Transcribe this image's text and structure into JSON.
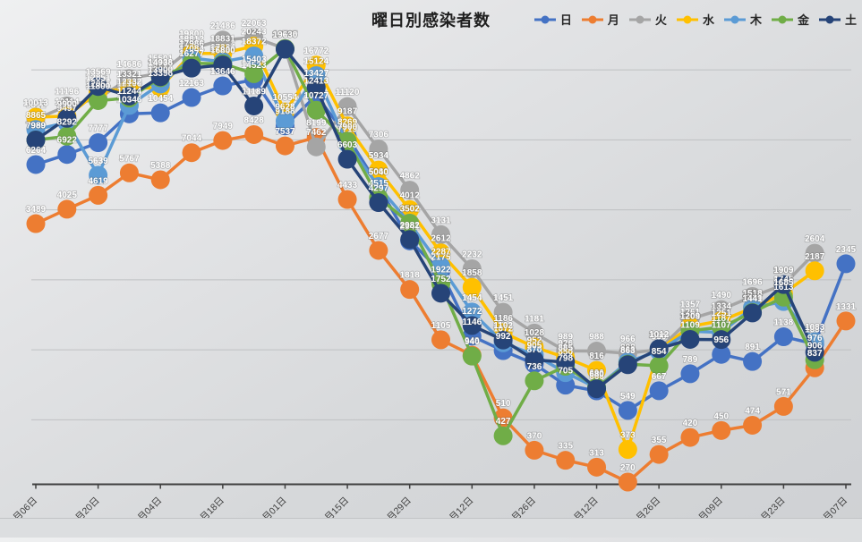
{
  "title": "曜日別感染者数",
  "legend": {
    "items": [
      {
        "label": "日",
        "color": "#4472C4"
      },
      {
        "label": "月",
        "color": "#ED7D31"
      },
      {
        "label": "火",
        "color": "#A5A5A5"
      },
      {
        "label": "水",
        "color": "#FFC000"
      },
      {
        "label": "木",
        "color": "#5B9BD5"
      },
      {
        "label": "金",
        "color": "#70AD47"
      },
      {
        "label": "土",
        "color": "#264478"
      }
    ]
  },
  "chart_data": {
    "type": "line",
    "y_scale": "log",
    "grid_on": true,
    "legend_position": "top-right",
    "y_axis_labels_visible": false,
    "y_gridline_values": [
      500,
      1000,
      2000,
      4000,
      8000,
      16000
    ],
    "x_tick_labels": [
      "11月06日",
      "11月20日",
      "12月04日",
      "12月18日",
      "01月01日",
      "01月15日",
      "01月29日",
      "02月12日",
      "02月26日",
      "03月12日",
      "03月26日",
      "04月09日",
      "04月23日",
      "05月07日"
    ],
    "points_per_tick": 2,
    "n_points": 27,
    "label_color": "#ffffff",
    "axis_color": "#404040",
    "gridline_color": "#bfc1c3",
    "series": [
      {
        "name": "日",
        "color": "#4472C4",
        "values": [
          6264,
          6922,
          7777,
          10346,
          10454,
          12163,
          13646,
          14523,
          9188,
          12413,
          8269,
          5060,
          2941,
          2175,
          1146,
          992,
          870,
          705,
          666,
          549,
          667,
          789,
          956,
          891,
          1138,
          1062,
          2345
        ]
      },
      {
        "name": "月",
        "color": "#ED7D31",
        "values": [
          3489,
          4025,
          4619,
          5767,
          5388,
          7044,
          7949,
          8428,
          7537,
          8199,
          4433,
          2677,
          1818,
          1105,
          949,
          510,
          370,
          335,
          313,
          270,
          355,
          420,
          450,
          474,
          571,
          837,
          1331
        ]
      },
      {
        "name": "火",
        "color": "#A5A5A5",
        "values": [
          9812,
          11196,
          12051,
          14686,
          15501,
          19800,
          21486,
          22063,
          19737,
          7462,
          11120,
          7306,
          4862,
          3131,
          2232,
          1451,
          1181,
          989,
          988,
          966,
          1004,
          1357,
          1490,
          1696,
          1905,
          2604
        ]
      },
      {
        "name": "水",
        "color": "#FFC000",
        "values": [
          10013,
          10114,
          12851,
          13321,
          13396,
          18812,
          18831,
          20243,
          10554,
          16772,
          9187,
          5934,
          4012,
          2612,
          1858,
          1186,
          1028,
          926,
          816,
          373,
          998,
          1261,
          1334,
          1514,
          1745,
          2187
        ]
      },
      {
        "name": "木",
        "color": "#5B9BD5",
        "values": [
          8865,
          9497,
          5639,
          11244,
          13900,
          17986,
          17334,
          18372,
          9628,
          15124,
          7719,
          5040,
          3507,
          2287,
          1454,
          1072,
          952,
          798,
          686,
          888,
          990,
          1204,
          1187,
          1518,
          1613,
          1083
        ]
      },
      {
        "name": "金",
        "color": "#70AD47",
        "values": [
          7990,
          8292,
          11800,
          12100,
          14796,
          17084,
          17000,
          15403,
          19738,
          10727,
          7900,
          4515,
          3502,
          1922,
          940,
          427,
          736,
          850,
          690,
          868,
          854,
          1209,
          1251,
          1449,
          1685,
          906
        ]
      },
      {
        "name": "土",
        "color": "#264478",
        "values": [
          7989,
          9900,
          13569,
          12332,
          14938,
          16277,
          16800,
          11189,
          19630,
          13427,
          6603,
          4297,
          2982,
          1752,
          1272,
          1102,
          905,
          885,
          680,
          863,
          1012,
          1109,
          1107,
          1441,
          1909,
          976
        ]
      }
    ]
  }
}
